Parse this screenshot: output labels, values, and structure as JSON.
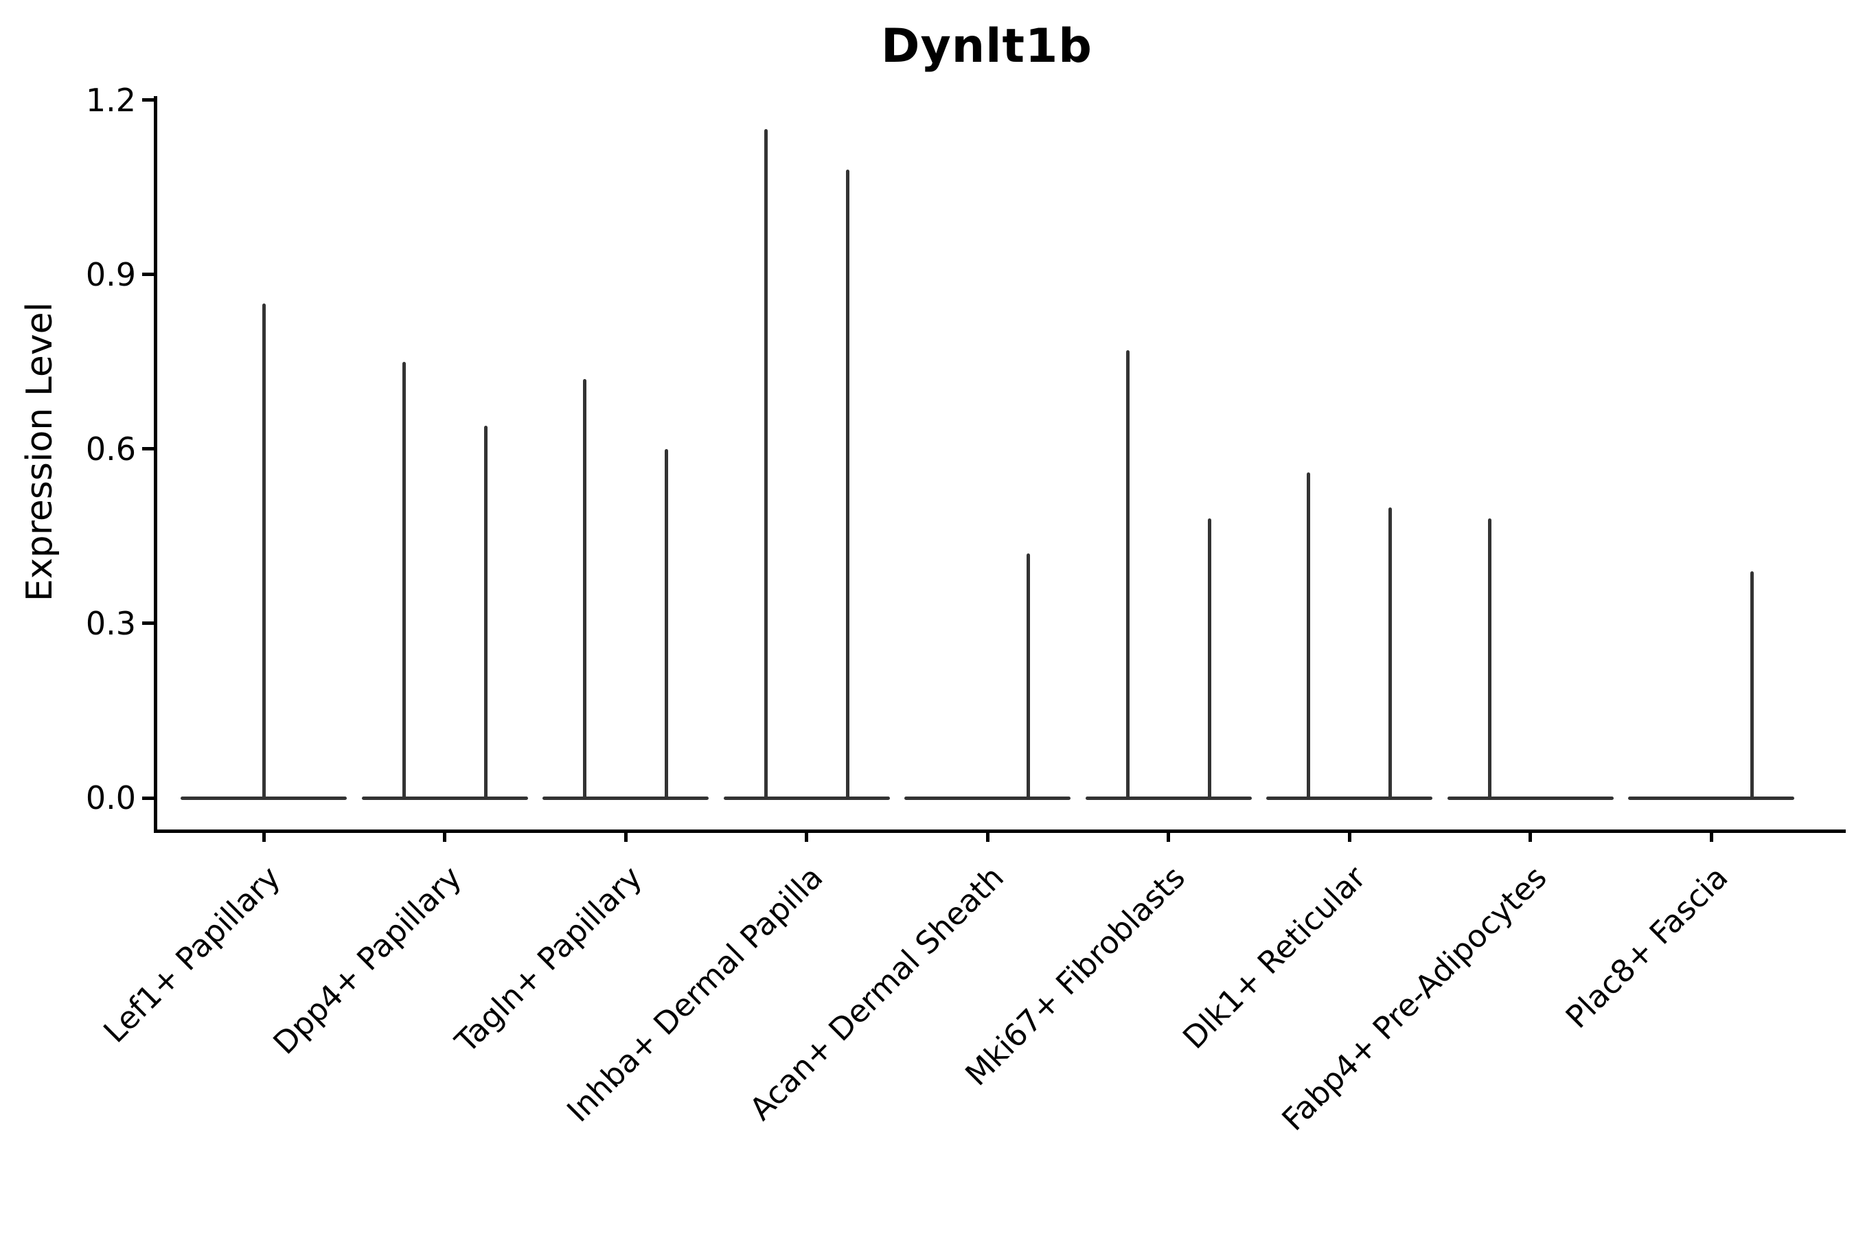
{
  "figure": {
    "title": "Dynlt1b",
    "ylabel": "Expression Level",
    "background": "#ffffff",
    "axis_color": "#000000",
    "violin_color": "#333333"
  },
  "chart_data": {
    "type": "violin",
    "title": "Dynlt1b",
    "xlabel": "",
    "ylabel": "Expression Level",
    "ylim": [
      0.0,
      1.2
    ],
    "yticks": [
      {
        "label": "0.0",
        "value": 0.0
      },
      {
        "label": "0.3",
        "value": 0.3
      },
      {
        "label": "0.6",
        "value": 0.6
      },
      {
        "label": "0.9",
        "value": 0.9
      },
      {
        "label": "1.2",
        "value": 1.2
      }
    ],
    "grid": false,
    "legend": "none",
    "note": "Needle-thin violins with flat base at 0; some categories show two side-by-side violins (left/right sub-positions), max value of each violin listed",
    "categories": [
      {
        "name": "Lef1+ Papillary",
        "violins": [
          {
            "group": "center",
            "max": 0.85
          }
        ]
      },
      {
        "name": "Dpp4+ Papillary",
        "violins": [
          {
            "group": "left",
            "max": 0.75
          },
          {
            "group": "right",
            "max": 0.64
          }
        ]
      },
      {
        "name": "Tagln+ Papillary",
        "violins": [
          {
            "group": "left",
            "max": 0.72
          },
          {
            "group": "right",
            "max": 0.6
          }
        ]
      },
      {
        "name": "Inhba+ Dermal Papilla",
        "violins": [
          {
            "group": "left",
            "max": 1.15
          },
          {
            "group": "right",
            "max": 1.08
          }
        ]
      },
      {
        "name": "Acan+ Dermal Sheath",
        "violins": [
          {
            "group": "right",
            "max": 0.42
          }
        ]
      },
      {
        "name": "Mki67+ Fibroblasts",
        "violins": [
          {
            "group": "left",
            "max": 0.77
          },
          {
            "group": "right",
            "max": 0.48
          }
        ]
      },
      {
        "name": "Dlk1+ Reticular",
        "violins": [
          {
            "group": "left",
            "max": 0.56
          },
          {
            "group": "right",
            "max": 0.5
          }
        ]
      },
      {
        "name": "Fabp4+ Pre-Adipocytes",
        "violins": [
          {
            "group": "left",
            "max": 0.48
          }
        ]
      },
      {
        "name": "Plac8+ Fascia",
        "violins": [
          {
            "group": "right",
            "max": 0.39
          }
        ]
      }
    ]
  }
}
